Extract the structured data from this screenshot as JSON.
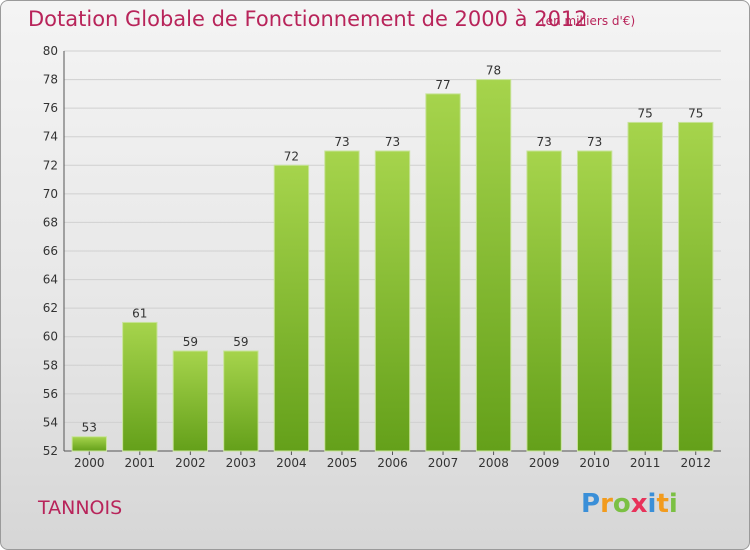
{
  "page": {
    "title": "Dotation Globale de Fonctionnement de 2000 à 2012",
    "unit_note": "(en milliers d'€)",
    "commune": "TANNOIS",
    "brand_letters": [
      "P",
      "r",
      "o",
      "x",
      "i",
      "t",
      "i"
    ],
    "brand_colors": [
      "#3a8fd8",
      "#f29b1d",
      "#7bc043",
      "#e8325a",
      "#3a8fd8",
      "#f29b1d",
      "#7bc043"
    ]
  },
  "chart_data": {
    "type": "bar",
    "title": "Dotation Globale de Fonctionnement de 2000 à 2012",
    "subtitle": "(en milliers d'€)",
    "xlabel": "",
    "ylabel": "",
    "categories": [
      "2000",
      "2001",
      "2002",
      "2003",
      "2004",
      "2005",
      "2006",
      "2007",
      "2008",
      "2009",
      "2010",
      "2011",
      "2012"
    ],
    "values": [
      53,
      61,
      59,
      59,
      72,
      73,
      73,
      77,
      78,
      73,
      73,
      75,
      75
    ],
    "ylim": [
      52,
      80
    ],
    "yticks": [
      52,
      54,
      56,
      58,
      60,
      62,
      64,
      66,
      68,
      70,
      72,
      74,
      76,
      78,
      80
    ],
    "grid": true,
    "bar_color": "#7ab628",
    "bar_color_light": "#a6d44c",
    "grid_color": "#d0d0d0"
  }
}
